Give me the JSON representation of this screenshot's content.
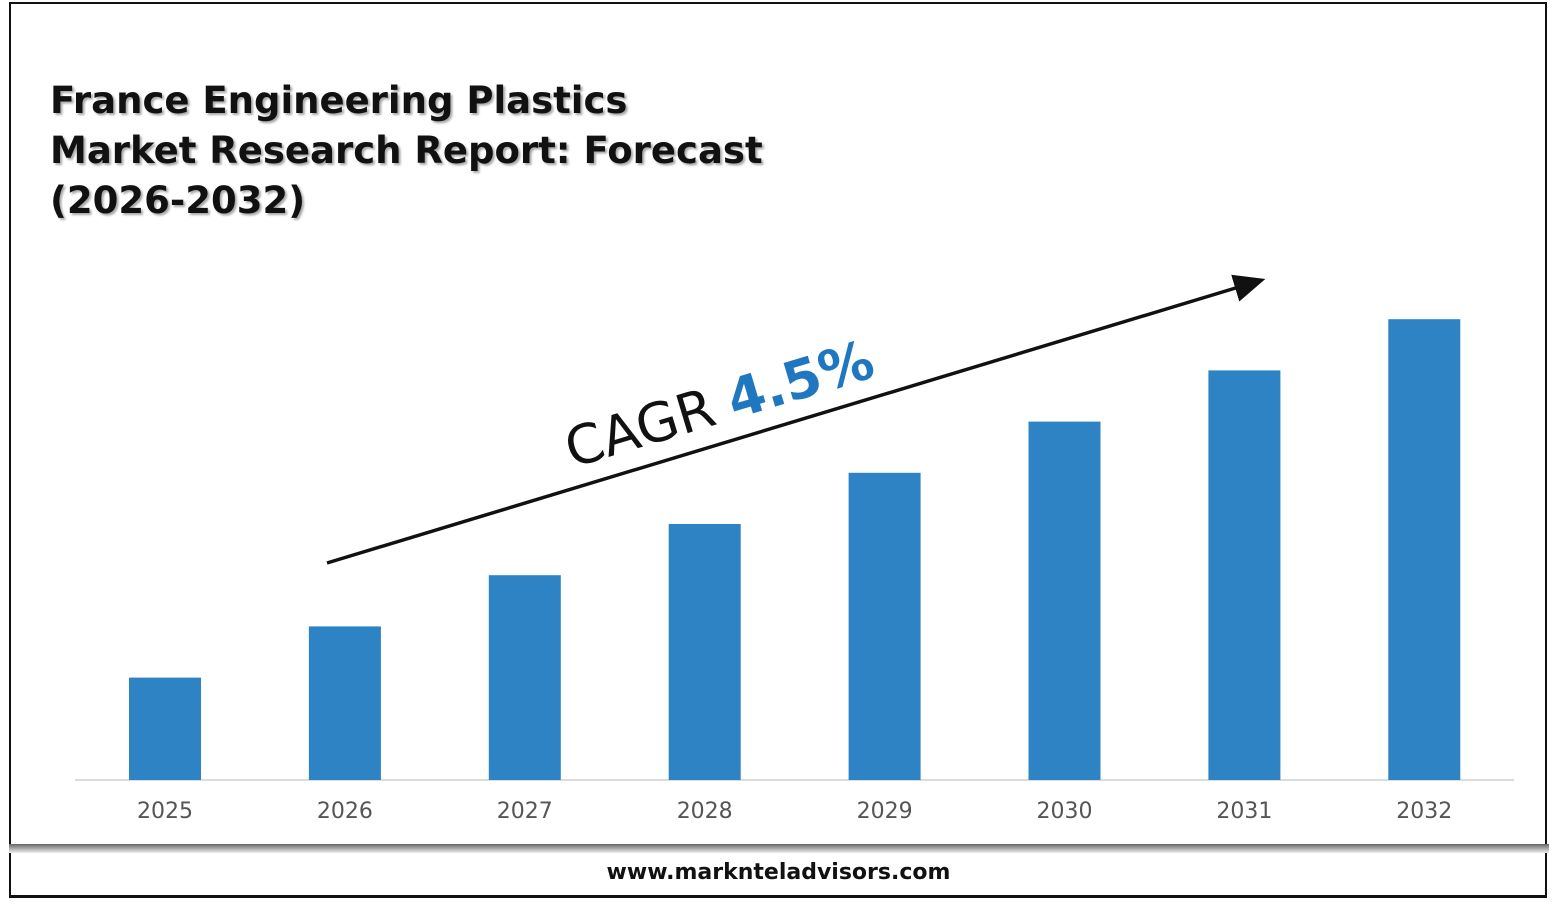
{
  "chart_data": {
    "type": "bar",
    "title": "France Engineering Plastics Market Research Report: Forecast (2026-2032)",
    "categories": [
      "2025",
      "2026",
      "2027",
      "2028",
      "2029",
      "2030",
      "2031",
      "2032"
    ],
    "values": [
      2,
      3,
      4,
      5,
      6,
      7,
      8,
      9
    ],
    "xlabel": "",
    "ylabel": "",
    "grid": false,
    "bar_color": "#2E83C4",
    "annotation": {
      "prefix": "CAGR",
      "value": "4.5%",
      "value_color": "#1F77C0"
    }
  },
  "footer": {
    "url": "www.marknteladvisors.com"
  }
}
